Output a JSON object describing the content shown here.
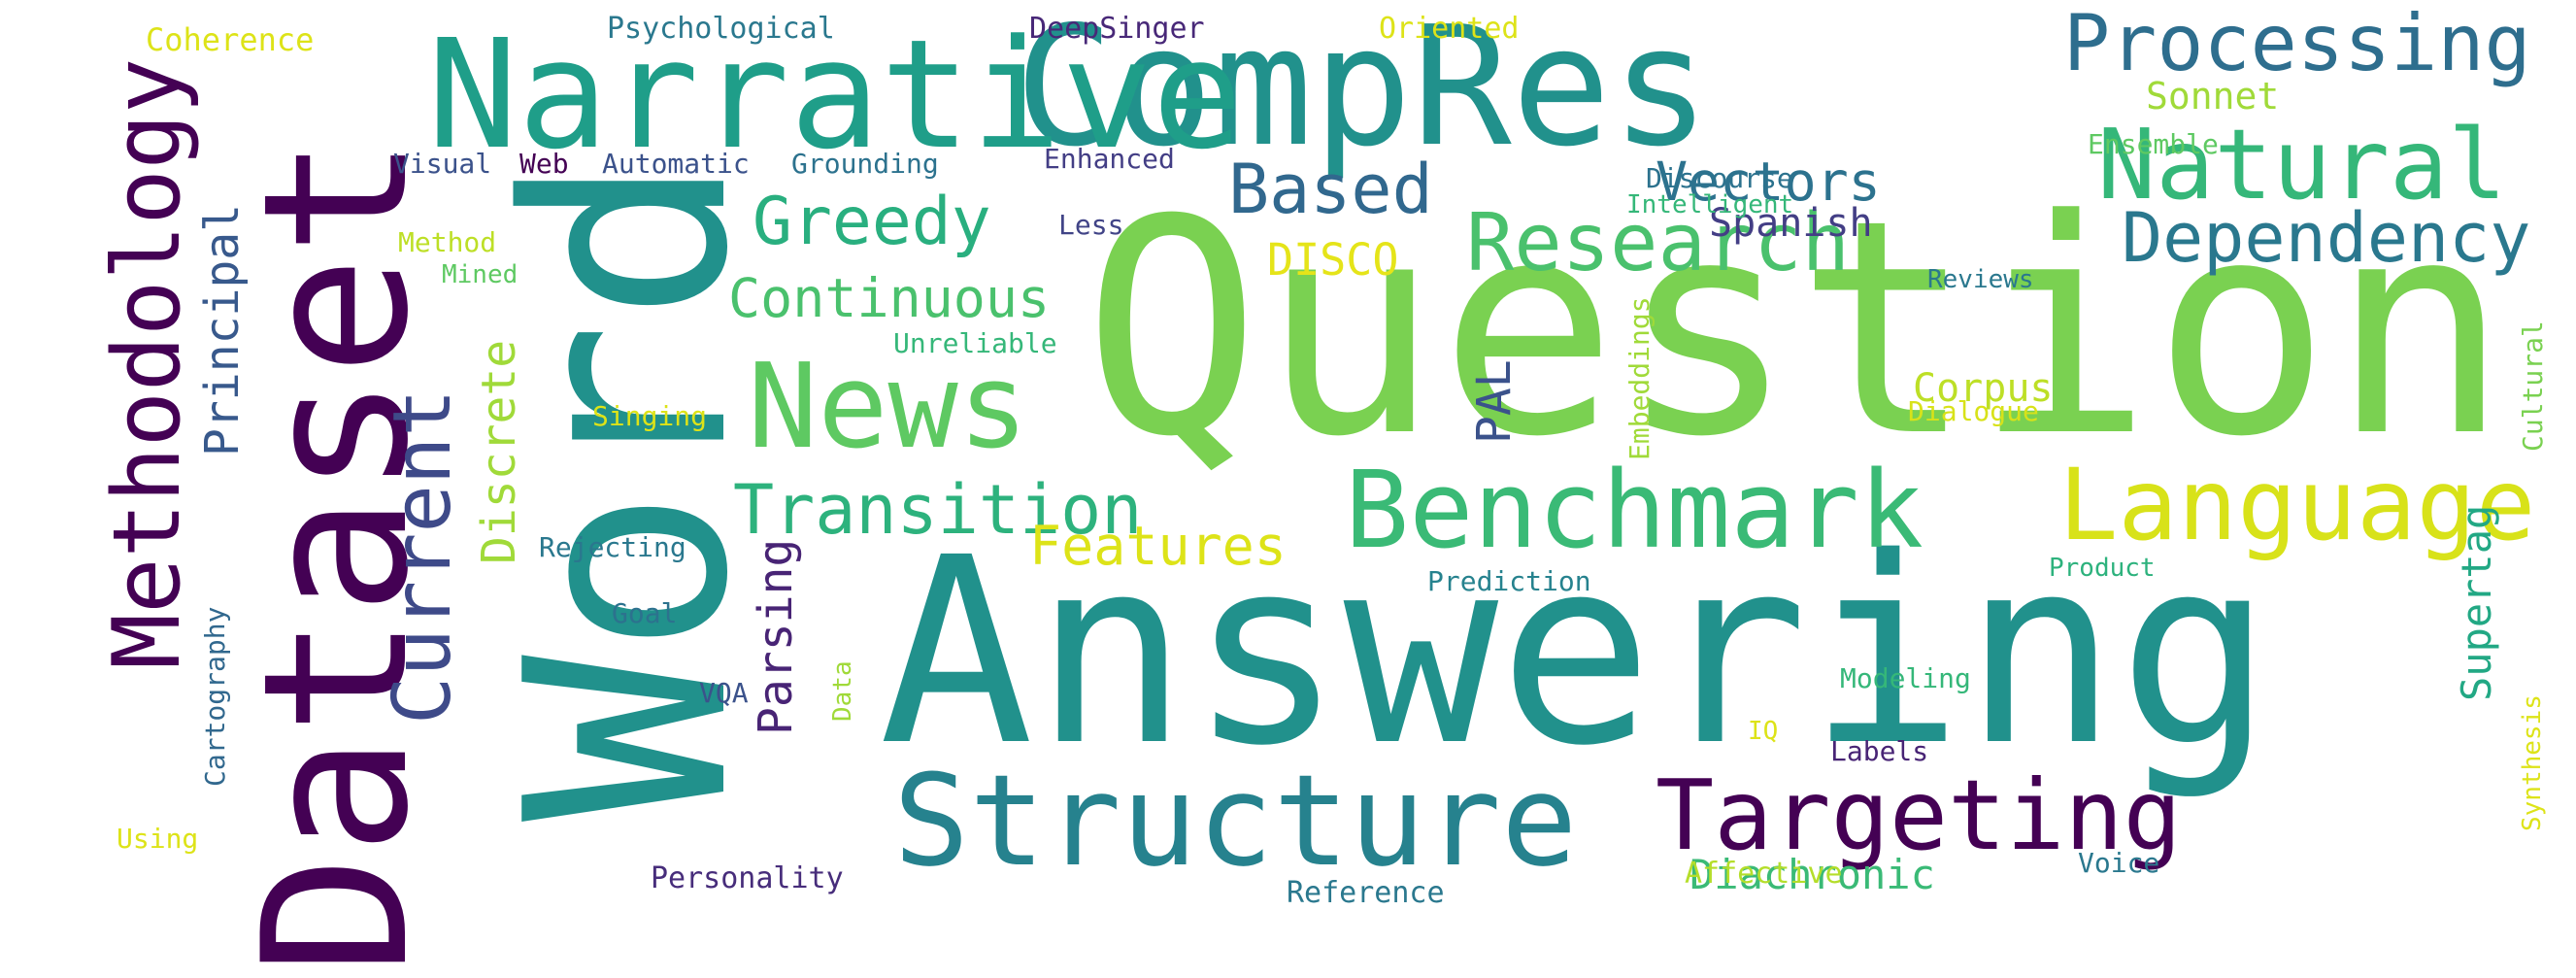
{
  "words": [
    {
      "text": "Question",
      "color": "#7ad151",
      "rotate": false
    },
    {
      "text": "Answering",
      "color": "#21918c",
      "rotate": false
    },
    {
      "text": "Word",
      "color": "#21918c",
      "rotate": true
    },
    {
      "text": "Dataset",
      "color": "#440154",
      "rotate": true
    },
    {
      "text": "CompRes",
      "color": "#21918c",
      "rotate": false
    },
    {
      "text": "Narrative",
      "color": "#1f9e89",
      "rotate": false
    },
    {
      "text": "News",
      "color": "#5ec962",
      "rotate": false
    },
    {
      "text": "Structure",
      "color": "#26828e",
      "rotate": false
    },
    {
      "text": "Benchmark",
      "color": "#3aba76",
      "rotate": false
    },
    {
      "text": "Targeting",
      "color": "#440154",
      "rotate": false
    },
    {
      "text": "Language",
      "color": "#d8e219",
      "rotate": false
    },
    {
      "text": "Natural",
      "color": "#35b779",
      "rotate": false
    },
    {
      "text": "Processing",
      "color": "#2e6e8e",
      "rotate": false
    },
    {
      "text": "Methodology",
      "color": "#440154",
      "rotate": true
    },
    {
      "text": "Current",
      "color": "#3e4a89",
      "rotate": true
    },
    {
      "text": "Transition",
      "color": "#2db27d",
      "rotate": false
    },
    {
      "text": "Research",
      "color": "#4ac16d",
      "rotate": false
    },
    {
      "text": "Dependency",
      "color": "#2a788e",
      "rotate": false
    },
    {
      "text": "Greedy",
      "color": "#29af7f",
      "rotate": false
    },
    {
      "text": "Continuous",
      "color": "#4ac16d",
      "rotate": false
    },
    {
      "text": "Based",
      "color": "#31688e",
      "rotate": false
    },
    {
      "text": "Vectors",
      "color": "#2c728e",
      "rotate": false
    },
    {
      "text": "Features",
      "color": "#dde318",
      "rotate": false
    },
    {
      "text": "Parsing",
      "color": "#482475",
      "rotate": true
    },
    {
      "text": "Discrete",
      "color": "#a0da39",
      "rotate": true
    },
    {
      "text": "Principal",
      "color": "#38598c",
      "rotate": true
    },
    {
      "text": "PAL",
      "color": "#3b528b",
      "rotate": true
    },
    {
      "text": "Supertag",
      "color": "#22a884",
      "rotate": true
    },
    {
      "text": "Diachronic",
      "color": "#3aba76",
      "rotate": false
    },
    {
      "text": "DISCO",
      "color": "#e5e419",
      "rotate": false
    },
    {
      "text": "Spanish",
      "color": "#433e85",
      "rotate": false
    },
    {
      "text": "Corpus",
      "color": "#bddf26",
      "rotate": false
    },
    {
      "text": "Sonnet",
      "color": "#a0da39",
      "rotate": false
    },
    {
      "text": "Coherence",
      "color": "#dde318",
      "rotate": false
    },
    {
      "text": "Psychological",
      "color": "#2a788e",
      "rotate": false
    },
    {
      "text": "DeepSinger",
      "color": "#482878",
      "rotate": false
    },
    {
      "text": "Oriented",
      "color": "#dde318",
      "rotate": false
    },
    {
      "text": "Ensemble",
      "color": "#5ec962",
      "rotate": false
    },
    {
      "text": "Visual",
      "color": "#3b528b",
      "rotate": false
    },
    {
      "text": "Web",
      "color": "#440154",
      "rotate": false
    },
    {
      "text": "Automatic",
      "color": "#3b528b",
      "rotate": false
    },
    {
      "text": "Grounding",
      "color": "#2c728e",
      "rotate": false
    },
    {
      "text": "Enhanced",
      "color": "#433e85",
      "rotate": false
    },
    {
      "text": "Discourse",
      "color": "#2c728e",
      "rotate": false
    },
    {
      "text": "Intelligent",
      "color": "#35b779",
      "rotate": false
    },
    {
      "text": "Less",
      "color": "#414487",
      "rotate": false
    },
    {
      "text": "Method",
      "color": "#bddf26",
      "rotate": false
    },
    {
      "text": "Mined",
      "color": "#5ec962",
      "rotate": false
    },
    {
      "text": "Reviews",
      "color": "#2a788e",
      "rotate": false
    },
    {
      "text": "Embeddings",
      "color": "#a0da39",
      "rotate": true
    },
    {
      "text": "Cultural",
      "color": "#7ad151",
      "rotate": true
    },
    {
      "text": "Unreliable",
      "color": "#35b779",
      "rotate": false
    },
    {
      "text": "Singing",
      "color": "#dde318",
      "rotate": false
    },
    {
      "text": "Dialogue",
      "color": "#d8e219",
      "rotate": false
    },
    {
      "text": "Rejecting",
      "color": "#2a788e",
      "rotate": false
    },
    {
      "text": "Prediction",
      "color": "#26828e",
      "rotate": false
    },
    {
      "text": "Product",
      "color": "#2db27d",
      "rotate": false
    },
    {
      "text": "Goal",
      "color": "#2c728e",
      "rotate": false
    },
    {
      "text": "Cartography",
      "color": "#31688e",
      "rotate": true
    },
    {
      "text": "VQA",
      "color": "#3b528b",
      "rotate": false
    },
    {
      "text": "Data",
      "color": "#a0da39",
      "rotate": true
    },
    {
      "text": "Modeling",
      "color": "#35b779",
      "rotate": false
    },
    {
      "text": "IQ",
      "color": "#dde318",
      "rotate": false
    },
    {
      "text": "Labels",
      "color": "#482475",
      "rotate": false
    },
    {
      "text": "Synthesis",
      "color": "#dde318",
      "rotate": true
    },
    {
      "text": "Using",
      "color": "#dde318",
      "rotate": false
    },
    {
      "text": "Personality",
      "color": "#472d7b",
      "rotate": false
    },
    {
      "text": "Affective",
      "color": "#b5de2b",
      "rotate": false
    },
    {
      "text": "Voice",
      "color": "#2a788e",
      "rotate": false
    },
    {
      "text": "Reference",
      "color": "#2a788e",
      "rotate": false
    }
  ]
}
